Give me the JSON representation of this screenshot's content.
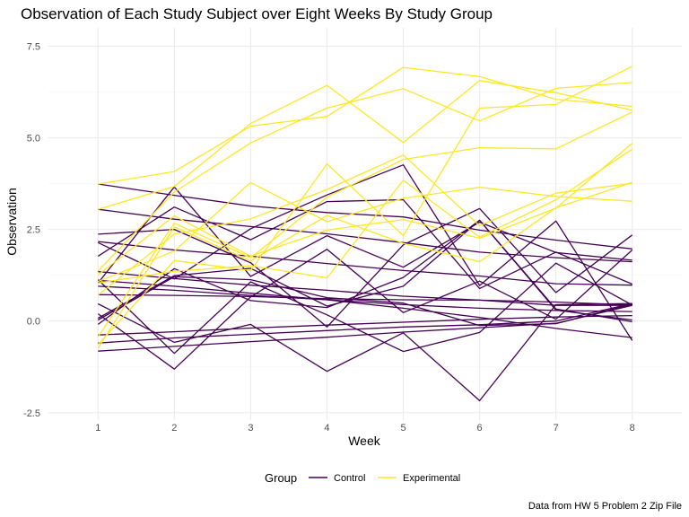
{
  "chart_data": {
    "type": "line",
    "title": "Observation of Each Study Subject over Eight Weeks By Study Group",
    "xlabel": "Week",
    "ylabel": "Observation",
    "caption": "Data from HW 5 Problem 2 Zip File",
    "x": [
      1,
      2,
      3,
      4,
      5,
      6,
      7,
      8
    ],
    "x_ticks": [
      "1",
      "2",
      "3",
      "4",
      "5",
      "6",
      "7",
      "8"
    ],
    "y_ticks": [
      -2.5,
      0,
      2.5,
      5,
      7.5
    ],
    "y_tick_labels": [
      "-2.5",
      "0.0",
      "2.5",
      "5.0",
      "7.5"
    ],
    "xlim": [
      0.35,
      8.65
    ],
    "ylim": [
      -2.7,
      8.0
    ],
    "grid": true,
    "legend": {
      "position": "bottom",
      "title": "Group",
      "entries": [
        {
          "name": "Control",
          "color": "#440154"
        },
        {
          "name": "Experimental",
          "color": "#fde725"
        }
      ]
    },
    "series": [
      {
        "group": "Control",
        "values": [
          0.2,
          -1.31,
          0.66,
          1.96,
          0.23,
          1.09,
          0.05,
          1.94
        ]
      },
      {
        "group": "Control",
        "values": [
          1.13,
          -0.88,
          1.07,
          0.17,
          -0.83,
          -0.31,
          1.58,
          0.44
        ]
      },
      {
        "group": "Control",
        "values": [
          1.77,
          3.11,
          2.22,
          3.26,
          3.31,
          0.89,
          1.88,
          1.01
        ]
      },
      {
        "group": "Control",
        "values": [
          1.04,
          3.66,
          1.22,
          2.33,
          1.47,
          2.7,
          1.87,
          1.66
        ]
      },
      {
        "group": "Control",
        "values": [
          0.47,
          -0.58,
          -0.09,
          -1.37,
          -0.32,
          -2.17,
          0.45,
          0.48
        ]
      },
      {
        "group": "Control",
        "values": [
          2.37,
          2.5,
          1.59,
          -0.16,
          2.08,
          3.07,
          0.78,
          2.35
        ]
      },
      {
        "group": "Control",
        "values": [
          0.03,
          1.21,
          1.13,
          0.64,
          0.49,
          -0.12,
          -0.07,
          0.46
        ]
      },
      {
        "group": "Control",
        "values": [
          -0.09,
          1.43,
          0.56,
          0.37,
          1.19,
          2.75,
          0.33,
          -0.02
        ]
      },
      {
        "group": "Control",
        "values": [
          0.08,
          1.24,
          1.44,
          0.41,
          0.95,
          2.75,
          0.3,
          0.03
        ]
      },
      {
        "group": "Control",
        "values": [
          2.14,
          1.15,
          2.52,
          3.44,
          4.26,
          0.97,
          2.73,
          -0.53
        ]
      },
      {
        "group": "Control",
        "values": [
          3.74,
          3.43,
          3.14,
          2.96,
          2.84,
          2.48,
          2.21,
          1.97
        ]
      },
      {
        "group": "Control",
        "values": [
          3.05,
          2.78,
          2.58,
          2.38,
          2.14,
          1.88,
          1.73,
          1.62
        ]
      },
      {
        "group": "Control",
        "values": [
          2.17,
          1.94,
          1.77,
          1.57,
          1.38,
          1.23,
          1.02,
          0.98
        ]
      },
      {
        "group": "Control",
        "values": [
          1.35,
          1.16,
          0.98,
          0.84,
          0.68,
          0.57,
          0.43,
          0.43
        ]
      },
      {
        "group": "Control",
        "values": [
          0.95,
          0.84,
          0.7,
          0.58,
          0.45,
          0.35,
          0.29,
          0.26
        ]
      },
      {
        "group": "Control",
        "values": [
          0.72,
          0.7,
          0.67,
          0.61,
          0.58,
          0.57,
          0.52,
          0.44
        ]
      },
      {
        "group": "Control",
        "values": [
          -0.38,
          -0.29,
          -0.19,
          -0.11,
          -0.03,
          0.05,
          0.11,
          0.15
        ]
      },
      {
        "group": "Control",
        "values": [
          -0.6,
          -0.46,
          -0.36,
          -0.26,
          -0.16,
          -0.1,
          0.0,
          0.48
        ]
      },
      {
        "group": "Control",
        "values": [
          -0.82,
          -0.69,
          -0.56,
          -0.44,
          -0.3,
          -0.18,
          -0.06,
          0.43
        ]
      },
      {
        "group": "Control",
        "values": [
          1.11,
          0.95,
          0.76,
          0.58,
          0.35,
          0.1,
          -0.2,
          -0.45
        ]
      },
      {
        "group": "Experimental",
        "values": [
          3.05,
          3.67,
          5.39,
          6.43,
          4.87,
          6.56,
          6.23,
          5.75
        ]
      },
      {
        "group": "Experimental",
        "values": [
          3.74,
          4.08,
          5.32,
          5.58,
          6.92,
          6.67,
          6.05,
          5.86
        ]
      },
      {
        "group": "Experimental",
        "values": [
          1.37,
          3.52,
          4.86,
          5.81,
          6.34,
          5.46,
          6.35,
          6.51
        ]
      },
      {
        "group": "Experimental",
        "values": [
          -0.64,
          1.65,
          1.38,
          4.29,
          2.33,
          5.81,
          5.91,
          6.95
        ]
      },
      {
        "group": "Experimental",
        "values": [
          -0.43,
          2.67,
          1.73,
          3.38,
          4.41,
          4.73,
          4.7,
          5.7
        ]
      },
      {
        "group": "Experimental",
        "values": [
          1.08,
          1.91,
          3.78,
          2.71,
          3.35,
          3.65,
          3.4,
          3.27
        ]
      },
      {
        "group": "Experimental",
        "values": [
          1.26,
          2.87,
          1.77,
          2.48,
          2.77,
          2.26,
          3.08,
          4.85
        ]
      },
      {
        "group": "Experimental",
        "values": [
          0.71,
          2.37,
          2.79,
          3.59,
          4.53,
          2.6,
          3.49,
          3.76
        ]
      },
      {
        "group": "Experimental",
        "values": [
          -0.74,
          2.57,
          1.64,
          2.88,
          2.12,
          1.62,
          3.09,
          3.78
        ]
      },
      {
        "group": "Experimental",
        "values": [
          1.04,
          1.36,
          1.51,
          1.18,
          3.84,
          2.29,
          3.31,
          4.69
        ]
      }
    ]
  }
}
